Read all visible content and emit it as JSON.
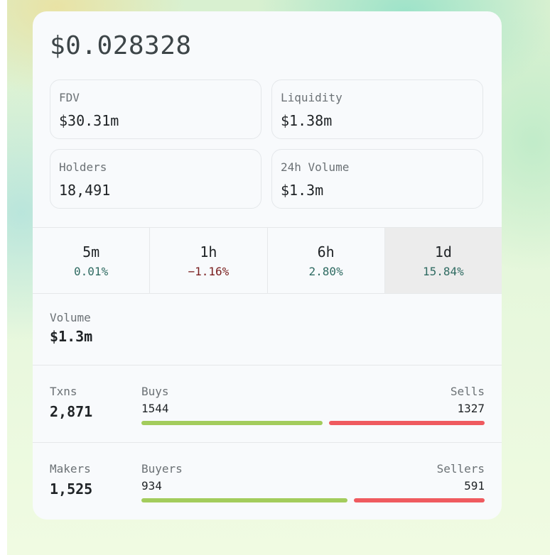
{
  "price": "$0.028328",
  "stats": [
    {
      "label": "FDV",
      "value": "$30.31m"
    },
    {
      "label": "Liquidity",
      "value": "$1.38m"
    },
    {
      "label": "Holders",
      "value": "18,491"
    },
    {
      "label": "24h Volume",
      "value": "$1.3m"
    }
  ],
  "tabs": [
    {
      "label": "5m",
      "change": "0.01%",
      "trend": "up"
    },
    {
      "label": "1h",
      "change": "−1.16%",
      "trend": "down"
    },
    {
      "label": "6h",
      "change": "2.80%",
      "trend": "up"
    },
    {
      "label": "1d",
      "change": "15.84%",
      "trend": "up",
      "selected": true
    }
  ],
  "volume": {
    "label": "Volume",
    "value": "$1.3m"
  },
  "txns": {
    "label": "Txns",
    "value": "2,871",
    "buy_label": "Buys",
    "buy_count": "1544",
    "sell_label": "Sells",
    "sell_count": "1327",
    "buy_share": 0.5378
  },
  "makers": {
    "label": "Makers",
    "value": "1,525",
    "buy_label": "Buyers",
    "buy_count": "934",
    "sell_label": "Sellers",
    "sell_count": "591",
    "buy_share": 0.6125
  },
  "colors": {
    "positive": "#2f6b62",
    "negative": "#7a1f1f",
    "buy_bar": "#a3cc5c",
    "sell_bar": "#ef5a5f",
    "selected_tab": "#ececec"
  }
}
